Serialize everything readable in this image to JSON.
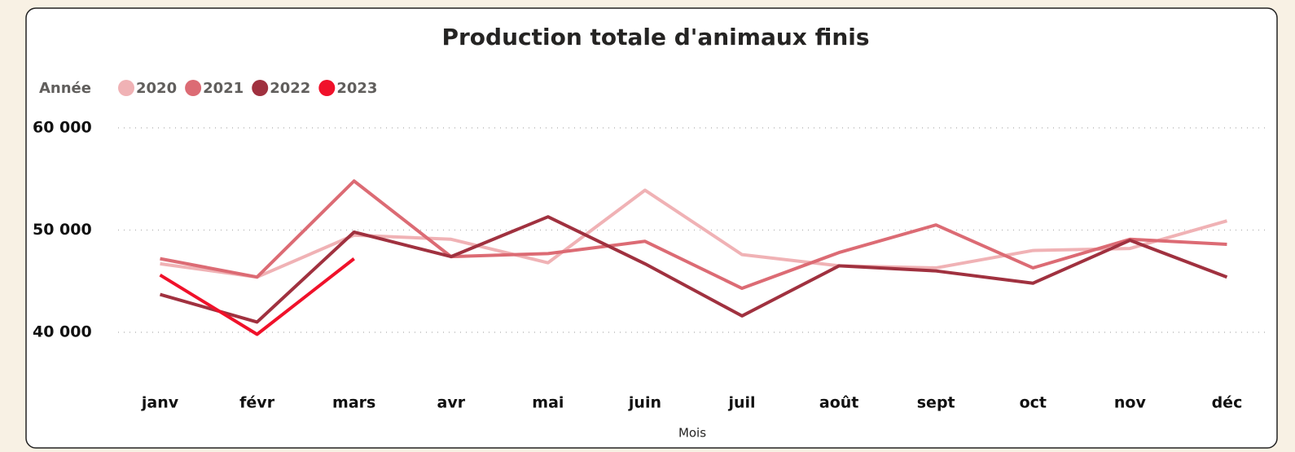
{
  "chart_data": {
    "type": "line",
    "title": "Production totale d'animaux finis",
    "legend_title": "Année",
    "legend_position": "top-left",
    "x_label": "Mois",
    "categories": [
      "janv",
      "févr",
      "mars",
      "avr",
      "mai",
      "juin",
      "juil",
      "août",
      "sept",
      "oct",
      "nov",
      "déc"
    ],
    "series": [
      {
        "name": "2020",
        "color": "#f0b2b5",
        "values": [
          46700,
          45400,
          49500,
          49100,
          46800,
          53900,
          47600,
          46500,
          46300,
          48000,
          48200,
          50900
        ]
      },
      {
        "name": "2021",
        "color": "#dc6b74",
        "values": [
          47200,
          45400,
          54800,
          47400,
          47700,
          48900,
          44300,
          47800,
          50500,
          46300,
          49100,
          48600
        ]
      },
      {
        "name": "2022",
        "color": "#a0313f",
        "values": [
          43700,
          41000,
          49800,
          47400,
          51300,
          46700,
          41600,
          46500,
          46000,
          44800,
          49000,
          45400
        ]
      },
      {
        "name": "2023",
        "color": "#f0112a",
        "values": [
          45600,
          39800,
          47200,
          null,
          null,
          null,
          null,
          null,
          null,
          null,
          null,
          null
        ]
      }
    ],
    "ylim": [
      36000,
      60500
    ],
    "yticks": [
      {
        "value": 40000,
        "label": "40 000"
      },
      {
        "value": 50000,
        "label": "50 000"
      },
      {
        "value": 60000,
        "label": "60 000"
      }
    ],
    "grid": true
  }
}
